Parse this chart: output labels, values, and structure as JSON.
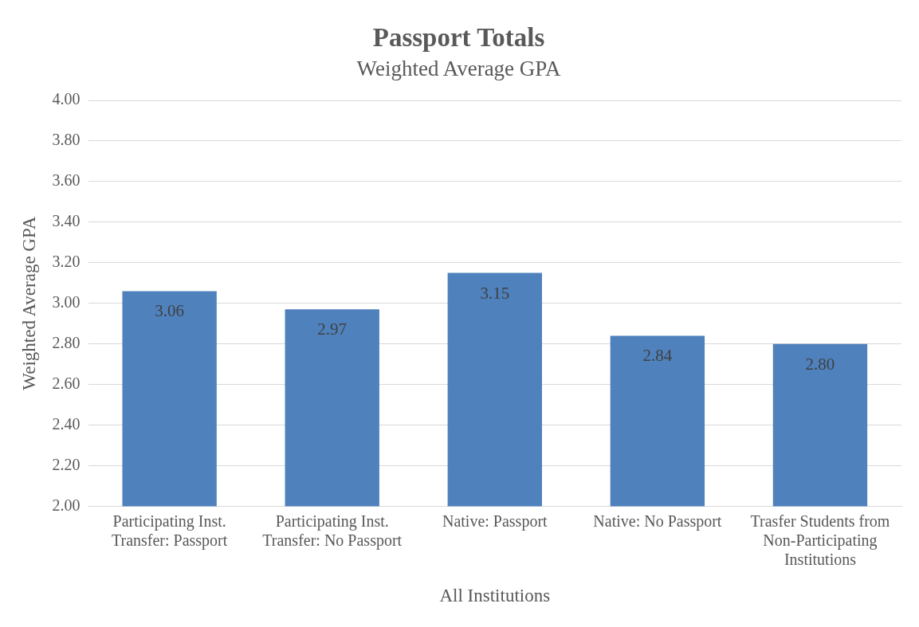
{
  "chart_data": {
    "type": "bar",
    "title": "Passport Totals",
    "subtitle": "Weighted Average GPA",
    "xlabel": "All Institutions",
    "ylabel": "Weighted Average GPA",
    "categories": [
      "Participating Inst. Transfer: Passport",
      "Participating Inst. Transfer: No Passport",
      "Native: Passport",
      "Native: No Passport",
      "Trasfer Students from Non-Participating Institutions"
    ],
    "values": [
      3.06,
      2.97,
      3.15,
      2.84,
      2.8
    ],
    "value_labels": [
      "3.06",
      "2.97",
      "3.15",
      "2.84",
      "2.80"
    ],
    "color": "#4f81bd",
    "ylim": [
      2.0,
      4.0
    ],
    "yticks": [
      {
        "value": 2.0,
        "label": "2.00"
      },
      {
        "value": 2.2,
        "label": "2.20"
      },
      {
        "value": 2.4,
        "label": "2.40"
      },
      {
        "value": 2.6,
        "label": "2.60"
      },
      {
        "value": 2.8,
        "label": "2.80"
      },
      {
        "value": 3.0,
        "label": "3.00"
      },
      {
        "value": 3.2,
        "label": "3.20"
      },
      {
        "value": 3.4,
        "label": "3.40"
      },
      {
        "value": 3.6,
        "label": "3.60"
      },
      {
        "value": 3.8,
        "label": "3.80"
      },
      {
        "value": 4.0,
        "label": "4.00"
      }
    ],
    "grid": "y",
    "legend": false
  }
}
